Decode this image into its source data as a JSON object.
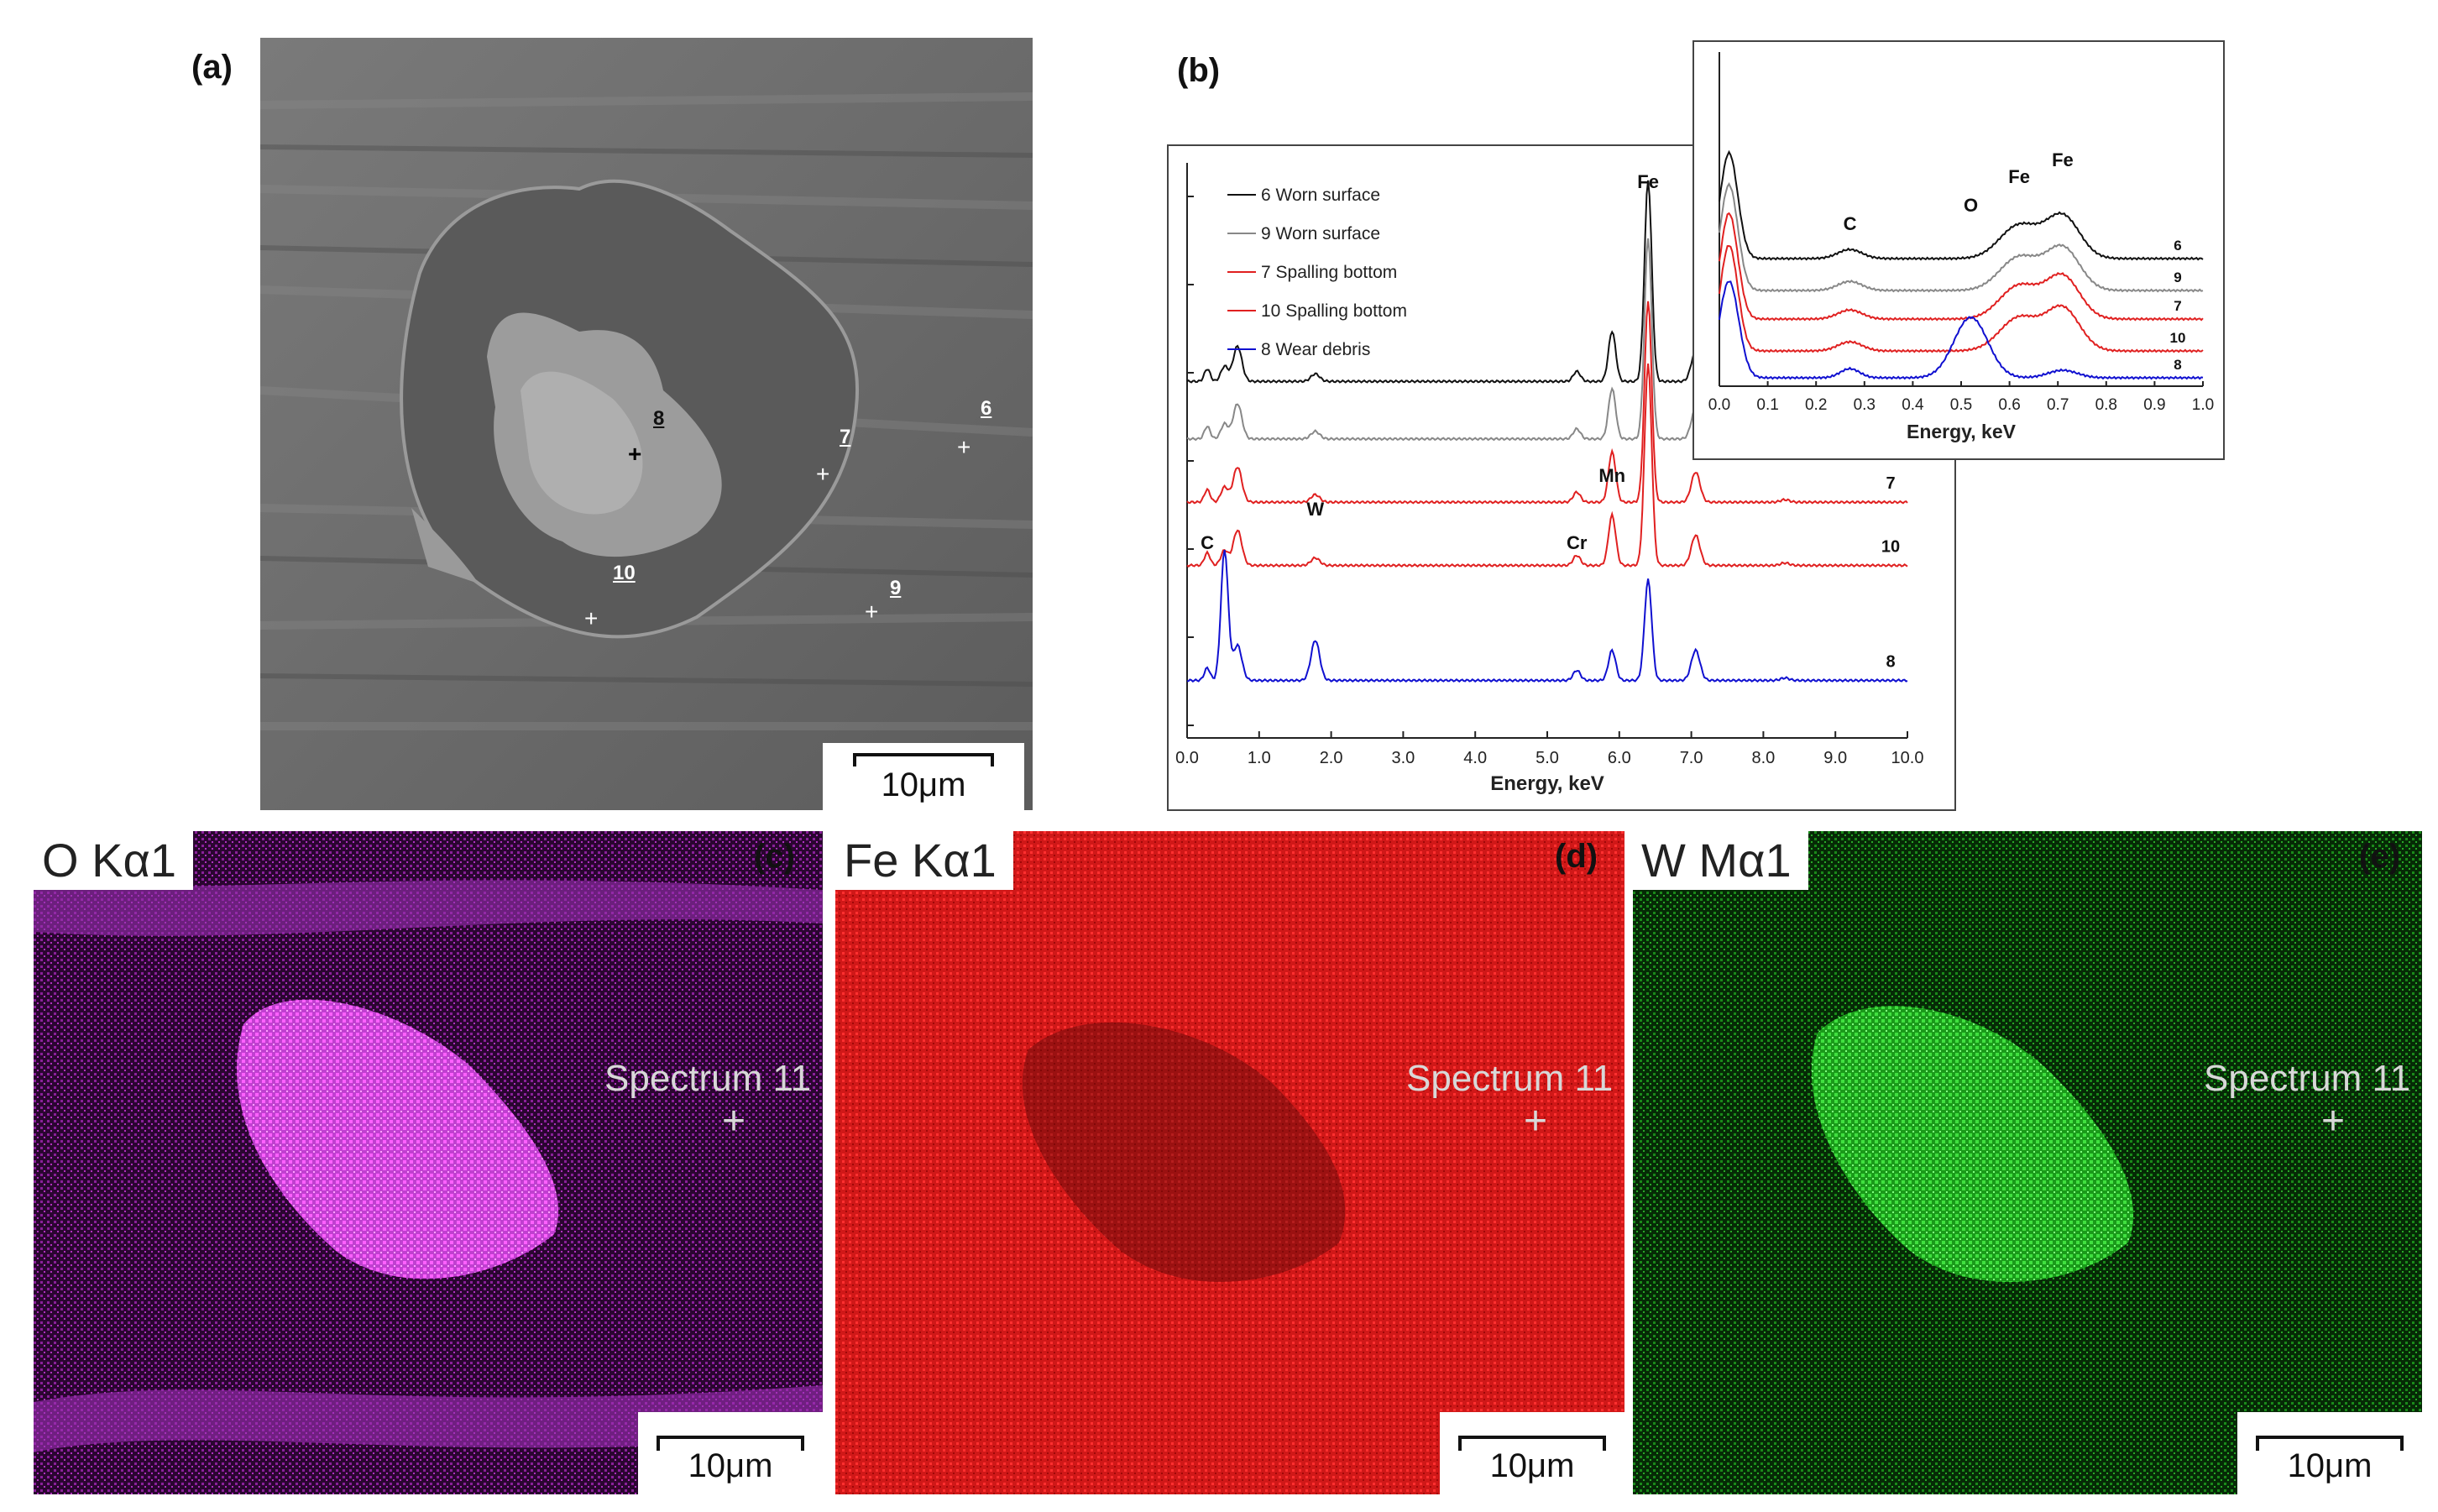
{
  "panels": {
    "a": {
      "label": "(a)",
      "scale_bar": "10μm",
      "point_labels": [
        "6",
        "7",
        "8",
        "9",
        "10"
      ]
    },
    "b": {
      "label": "(b)"
    },
    "c": {
      "label": "(c)",
      "element": "O Kα1",
      "spectrum_label": "Spectrum 11",
      "scale_bar": "10μm",
      "color": "#e040e0"
    },
    "d": {
      "label": "(d)",
      "element": "Fe Kα1",
      "spectrum_label": "Spectrum 11",
      "scale_bar": "10μm",
      "color": "#e01010"
    },
    "e": {
      "label": "(e)",
      "element": "W Mα1",
      "spectrum_label": "Spectrum 11",
      "scale_bar": "10μm",
      "color": "#20c020"
    }
  },
  "chart_data": [
    {
      "type": "line",
      "xlabel": "Energy, keV",
      "ylabel": "",
      "xlim": [
        0,
        10
      ],
      "x_ticks": [
        "0.0",
        "1.0",
        "2.0",
        "3.0",
        "4.0",
        "5.0",
        "6.0",
        "7.0",
        "8.0",
        "9.0",
        "10.0"
      ],
      "legend_position": "top-left",
      "peak_labels": [
        {
          "text": "C",
          "x": 0.28
        },
        {
          "text": "W",
          "x": 1.78
        },
        {
          "text": "Cr",
          "x": 5.41
        },
        {
          "text": "Mn",
          "x": 5.9
        },
        {
          "text": "Fe",
          "x": 6.4
        }
      ],
      "series": [
        {
          "name": "6 Worn surface",
          "curve_label": "6",
          "color": "#111111",
          "baseline": 0.62
        },
        {
          "name": "9 Worn surface",
          "curve_label": "9",
          "color": "#888888",
          "baseline": 0.52
        },
        {
          "name": "7 Spalling bottom",
          "curve_label": "7",
          "color": "#e02020",
          "baseline": 0.41
        },
        {
          "name": "10 Spalling bottom",
          "curve_label": "10",
          "color": "#e02020",
          "baseline": 0.3
        },
        {
          "name": "8 Wear debris",
          "curve_label": "8",
          "color": "#1010d0",
          "baseline": 0.1
        }
      ]
    },
    {
      "type": "line",
      "xlabel": "Energy, keV",
      "ylabel": "",
      "xlim": [
        0,
        1
      ],
      "x_ticks": [
        "0.0",
        "0.1",
        "0.2",
        "0.3",
        "0.4",
        "0.5",
        "0.6",
        "0.7",
        "0.8",
        "0.9",
        "1.0"
      ],
      "peak_labels": [
        {
          "text": "C",
          "x": 0.27
        },
        {
          "text": "O",
          "x": 0.52
        },
        {
          "text": "Fe",
          "x": 0.62
        },
        {
          "text": "Fe",
          "x": 0.71
        }
      ],
      "series": [
        {
          "curve_label": "6",
          "color": "#111111"
        },
        {
          "curve_label": "9",
          "color": "#888888"
        },
        {
          "curve_label": "7",
          "color": "#e02020"
        },
        {
          "curve_label": "10",
          "color": "#e02020"
        },
        {
          "curve_label": "8",
          "color": "#1010d0"
        }
      ]
    }
  ]
}
